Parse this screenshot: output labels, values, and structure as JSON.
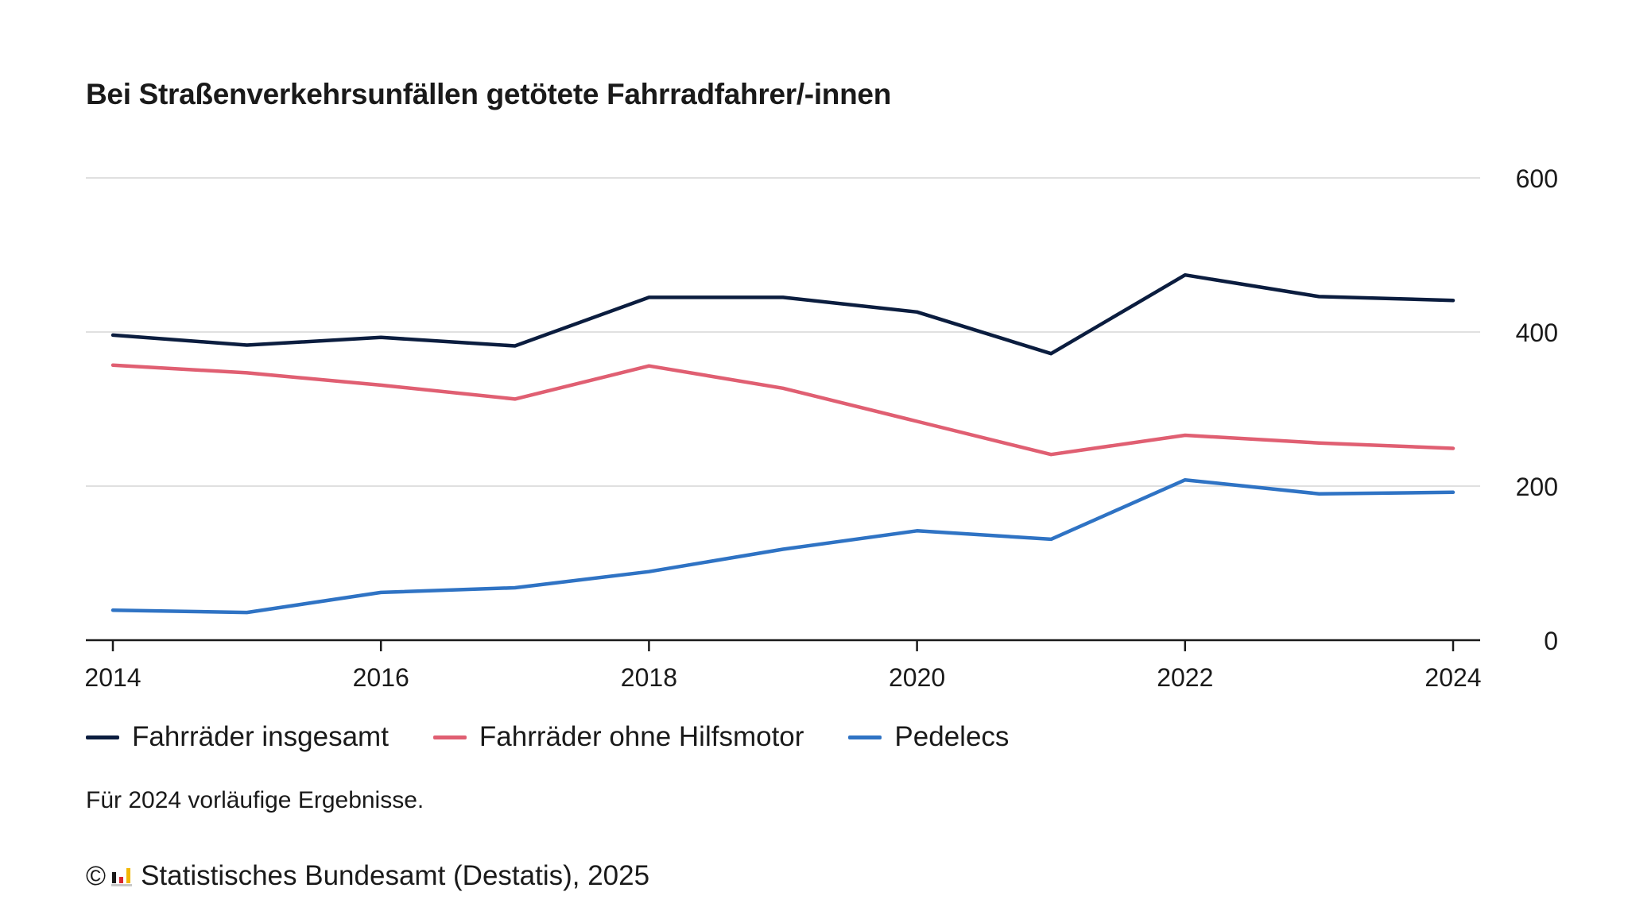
{
  "chart_data": {
    "type": "line",
    "title": "Bei Straßenverkehrsunfällen getötete Fahrradfahrer/-innen",
    "x": [
      2014,
      2015,
      2016,
      2017,
      2018,
      2019,
      2020,
      2021,
      2022,
      2023,
      2024
    ],
    "x_tick_labels": [
      "2014",
      "2016",
      "2018",
      "2020",
      "2022",
      "2024"
    ],
    "y_tick_labels": [
      "0",
      "200",
      "400",
      "600"
    ],
    "ylim": [
      0,
      600
    ],
    "grid": true,
    "y_axis_position": "right",
    "legend_position": "bottom-left",
    "series": [
      {
        "name": "Fahrräder insgesamt",
        "color": "#0b1d3f",
        "values": [
          396,
          383,
          393,
          382,
          445,
          445,
          426,
          372,
          474,
          446,
          441
        ]
      },
      {
        "name": "Fahrräder ohne Hilfsmotor",
        "color": "#e05f72",
        "values": [
          357,
          347,
          331,
          313,
          356,
          327,
          284,
          241,
          266,
          256,
          249
        ]
      },
      {
        "name": "Pedelecs",
        "color": "#2f73c4",
        "values": [
          39,
          36,
          62,
          68,
          89,
          118,
          142,
          131,
          208,
          190,
          192
        ]
      }
    ]
  },
  "note": "Für 2024 vorläufige Ergebnisse.",
  "source": {
    "copyright_symbol": "©",
    "logo_icon": "destatis-logo-icon",
    "text": "Statistisches Bundesamt (Destatis), 2025"
  }
}
